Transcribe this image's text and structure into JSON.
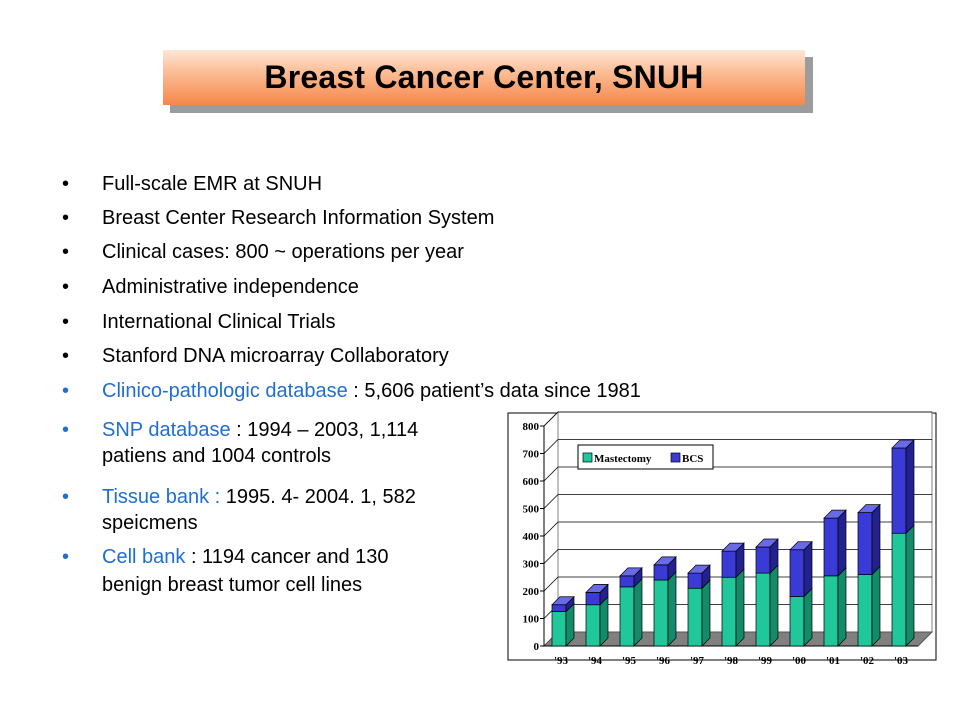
{
  "title": "Breast Cancer Center, SNUH",
  "bullets": [
    {
      "text": "Full-scale EMR at SNUH"
    },
    {
      "text": "Breast Center Research Information System"
    },
    {
      "text": "Clinical cases: 800 ~ operations per year"
    },
    {
      "text": "Administrative independence"
    },
    {
      "text": "International Clinical Trials"
    },
    {
      "text": "Stanford DNA microarray Collaboratory"
    }
  ],
  "highlight_bullets": [
    {
      "label": "Clinico-pathologic database",
      "rest": " : 5,606 patient’s data since 1981"
    },
    {
      "label": "SNP database",
      "rest": " : 1994 – 2003, 1,114",
      "line2": "patiens and 1004 controls"
    },
    {
      "label": "Tissue bank :",
      "rest": " 1995. 4- 2004. 1, 582",
      "line2": "speicmens"
    },
    {
      "label": "Cell bank",
      "rest": "  : 1194 cancer and 130",
      "line2": "benign breast tumor cell lines"
    }
  ],
  "colors": {
    "highlight": "#1f6fd2",
    "mastectomy": "#1fc79a",
    "bcs": "#3a3ad6"
  },
  "chart_data": {
    "type": "bar",
    "stacked": true,
    "categories": [
      "'93",
      "'94",
      "'95",
      "'96",
      "'97",
      "'98",
      "'99",
      "'00",
      "'01",
      "'02",
      "'03"
    ],
    "series": [
      {
        "name": "Mastectomy",
        "values": [
          125,
          150,
          215,
          240,
          210,
          250,
          265,
          180,
          255,
          260,
          410
        ]
      },
      {
        "name": "BCS",
        "values": [
          25,
          45,
          40,
          55,
          55,
          95,
          95,
          170,
          210,
          225,
          310
        ]
      }
    ],
    "ylim": [
      0,
      800
    ],
    "yticks": [
      "0",
      "100",
      "200",
      "300",
      "400",
      "500",
      "600",
      "700",
      "800"
    ],
    "grid": true,
    "legend_position": "top-left"
  }
}
